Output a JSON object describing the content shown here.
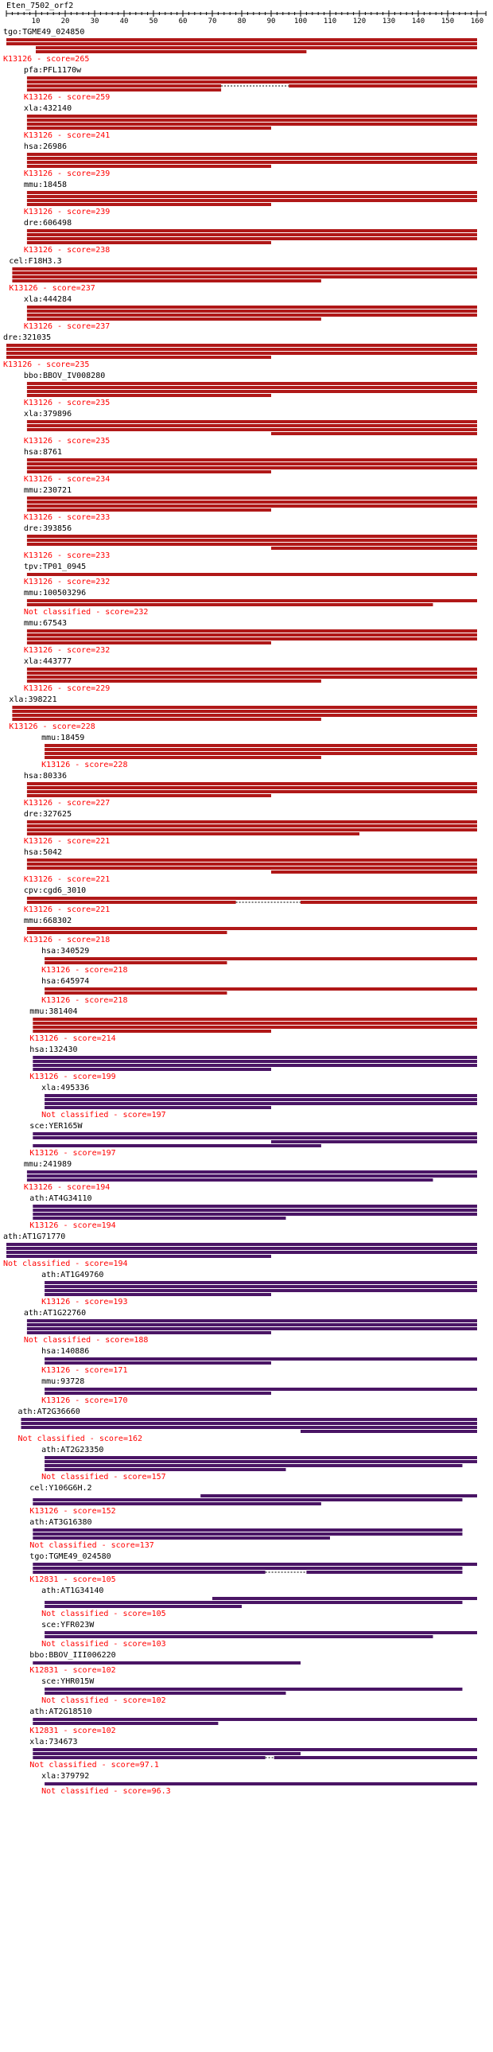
{
  "title": "Eten_7502_orf2",
  "axis": {
    "min": 0,
    "max": 163,
    "tick_values": [
      10,
      20,
      30,
      40,
      50,
      60,
      70,
      80,
      90,
      100,
      110,
      120,
      130,
      140,
      150,
      160
    ],
    "tick_labels": [
      "10",
      "20",
      "30",
      "40",
      "50",
      "60",
      "70",
      "80",
      "90",
      "100",
      "110",
      "120",
      "130",
      "140",
      "150",
      "160"
    ]
  },
  "colors": {
    "red_bar": "#b01818",
    "purple_bar": "#4a1565",
    "label_text": "#ff0000",
    "axis": "#000000"
  },
  "hits": [
    {
      "gene": "tgo:TGME49_024850",
      "label": "K13126 - score=265",
      "start": 0,
      "bar_color": "red",
      "bars": [
        [
          0,
          160
        ],
        [
          0,
          160
        ],
        [
          10,
          160
        ],
        [
          10,
          102
        ]
      ]
    },
    {
      "gene": "pfa:PFL1170w",
      "label": "K13126 - score=259",
      "start": 7,
      "bar_color": "red",
      "bars": [
        [
          7,
          160
        ],
        [
          7,
          160
        ],
        [
          7,
          73,
          96,
          160
        ],
        [
          7,
          73
        ]
      ]
    },
    {
      "gene": "xla:432140",
      "label": "K13126 - score=241",
      "start": 7,
      "bar_color": "red",
      "bars": [
        [
          7,
          160
        ],
        [
          7,
          160
        ],
        [
          7,
          160
        ],
        [
          7,
          90
        ]
      ]
    },
    {
      "gene": "hsa:26986",
      "label": "K13126 - score=239",
      "start": 7,
      "bar_color": "red",
      "bars": [
        [
          7,
          160
        ],
        [
          7,
          160
        ],
        [
          7,
          160
        ],
        [
          7,
          90
        ]
      ]
    },
    {
      "gene": "mmu:18458",
      "label": "K13126 - score=239",
      "start": 7,
      "bar_color": "red",
      "bars": [
        [
          7,
          160
        ],
        [
          7,
          160
        ],
        [
          7,
          160
        ],
        [
          7,
          90
        ]
      ]
    },
    {
      "gene": "dre:606498",
      "label": "K13126 - score=238",
      "start": 7,
      "bar_color": "red",
      "bars": [
        [
          7,
          160
        ],
        [
          7,
          160
        ],
        [
          7,
          160
        ],
        [
          7,
          90
        ]
      ]
    },
    {
      "gene": "cel:F18H3.3",
      "label": "K13126 - score=237",
      "start": 2,
      "bar_color": "red",
      "bars": [
        [
          2,
          160
        ],
        [
          2,
          160
        ],
        [
          2,
          160
        ],
        [
          2,
          107
        ]
      ]
    },
    {
      "gene": "xla:444284",
      "label": "K13126 - score=237",
      "start": 7,
      "bar_color": "red",
      "bars": [
        [
          7,
          160
        ],
        [
          7,
          160
        ],
        [
          7,
          160
        ],
        [
          7,
          107
        ]
      ]
    },
    {
      "gene": "dre:321035",
      "label": "K13126 - score=235",
      "start": 0,
      "bar_color": "red",
      "bars": [
        [
          0,
          160
        ],
        [
          0,
          160
        ],
        [
          0,
          160
        ],
        [
          0,
          90
        ]
      ]
    },
    {
      "gene": "bbo:BBOV_IV008280",
      "label": "K13126 - score=235",
      "start": 7,
      "bar_color": "red",
      "bars": [
        [
          7,
          160
        ],
        [
          7,
          160
        ],
        [
          7,
          160
        ],
        [
          7,
          90
        ]
      ]
    },
    {
      "gene": "xla:379896",
      "label": "K13126 - score=235",
      "start": 7,
      "bar_color": "red",
      "bars": [
        [
          7,
          160
        ],
        [
          7,
          160
        ],
        [
          7,
          160
        ],
        [
          90,
          160
        ]
      ]
    },
    {
      "gene": "hsa:8761",
      "label": "K13126 - score=234",
      "start": 7,
      "bar_color": "red",
      "bars": [
        [
          7,
          160
        ],
        [
          7,
          160
        ],
        [
          7,
          160
        ],
        [
          7,
          90
        ]
      ]
    },
    {
      "gene": "mmu:230721",
      "label": "K13126 - score=233",
      "start": 7,
      "bar_color": "red",
      "bars": [
        [
          7,
          160
        ],
        [
          7,
          160
        ],
        [
          7,
          160
        ],
        [
          7,
          90
        ]
      ]
    },
    {
      "gene": "dre:393856",
      "label": "K13126 - score=233",
      "start": 7,
      "bar_color": "red",
      "bars": [
        [
          7,
          160
        ],
        [
          7,
          160
        ],
        [
          7,
          160
        ],
        [
          90,
          160
        ]
      ]
    },
    {
      "gene": "tpv:TP01_0945",
      "label": "K13126 - score=232",
      "start": 7,
      "bar_color": "red",
      "bars": [
        [
          7,
          160
        ]
      ]
    },
    {
      "gene": "mmu:100503296",
      "label": "Not classified - score=232",
      "start": 7,
      "bar_color": "red",
      "bars": [
        [
          7,
          160
        ],
        [
          7,
          145
        ]
      ]
    },
    {
      "gene": "mmu:67543",
      "label": "K13126 - score=232",
      "start": 7,
      "bar_color": "red",
      "bars": [
        [
          7,
          160
        ],
        [
          7,
          160
        ],
        [
          7,
          160
        ],
        [
          7,
          90
        ]
      ]
    },
    {
      "gene": "xla:443777",
      "label": "K13126 - score=229",
      "start": 7,
      "bar_color": "red",
      "bars": [
        [
          7,
          160
        ],
        [
          7,
          160
        ],
        [
          7,
          160
        ],
        [
          7,
          107
        ]
      ]
    },
    {
      "gene": "xla:398221",
      "label": "K13126 - score=228",
      "start": 2,
      "bar_color": "red",
      "bars": [
        [
          2,
          160
        ],
        [
          2,
          160
        ],
        [
          2,
          160
        ],
        [
          2,
          107
        ]
      ]
    },
    {
      "gene": "mmu:18459",
      "label": "K13126 - score=228",
      "start": 13,
      "bar_color": "red",
      "bars": [
        [
          13,
          160
        ],
        [
          13,
          160
        ],
        [
          13,
          160
        ],
        [
          13,
          107
        ]
      ]
    },
    {
      "gene": "hsa:80336",
      "label": "K13126 - score=227",
      "start": 7,
      "bar_color": "red",
      "bars": [
        [
          7,
          160
        ],
        [
          7,
          160
        ],
        [
          7,
          160
        ],
        [
          7,
          90
        ]
      ]
    },
    {
      "gene": "dre:327625",
      "label": "K13126 - score=221",
      "start": 7,
      "bar_color": "red",
      "bars": [
        [
          7,
          160
        ],
        [
          7,
          160
        ],
        [
          7,
          160
        ],
        [
          7,
          120
        ]
      ]
    },
    {
      "gene": "hsa:5042",
      "label": "K13126 - score=221",
      "start": 7,
      "bar_color": "red",
      "bars": [
        [
          7,
          160
        ],
        [
          7,
          160
        ],
        [
          7,
          160
        ],
        [
          90,
          160
        ]
      ]
    },
    {
      "gene": "cpv:cgd6_3010",
      "label": "K13126 - score=221",
      "start": 7,
      "bar_color": "red",
      "bars": [
        [
          7,
          160
        ],
        [
          7,
          78,
          100,
          160
        ]
      ]
    },
    {
      "gene": "mmu:668302",
      "label": "K13126 - score=218",
      "start": 7,
      "bar_color": "red",
      "bars": [
        [
          7,
          160
        ],
        [
          7,
          75
        ]
      ]
    },
    {
      "gene": "hsa:340529",
      "label": "K13126 - score=218",
      "start": 13,
      "bar_color": "red",
      "bars": [
        [
          13,
          160
        ],
        [
          13,
          75
        ]
      ]
    },
    {
      "gene": "hsa:645974",
      "label": "K13126 - score=218",
      "start": 13,
      "bar_color": "red",
      "bars": [
        [
          13,
          160
        ],
        [
          13,
          75
        ]
      ]
    },
    {
      "gene": "mmu:381404",
      "label": "K13126 - score=214",
      "start": 9,
      "bar_color": "red",
      "bars": [
        [
          9,
          160
        ],
        [
          9,
          160
        ],
        [
          9,
          160
        ],
        [
          9,
          90
        ]
      ]
    },
    {
      "gene": "hsa:132430",
      "label": "K13126 - score=199",
      "start": 9,
      "bar_color": "purple",
      "bars": [
        [
          9,
          160
        ],
        [
          9,
          160
        ],
        [
          9,
          160
        ],
        [
          9,
          90
        ]
      ]
    },
    {
      "gene": "xla:495336",
      "label": "Not classified - score=197",
      "start": 13,
      "bar_color": "purple",
      "bars": [
        [
          13,
          160
        ],
        [
          13,
          160
        ],
        [
          13,
          160
        ],
        [
          13,
          90
        ]
      ]
    },
    {
      "gene": "sce:YER165W",
      "label": "K13126 - score=197",
      "start": 9,
      "bar_color": "purple",
      "bars": [
        [
          9,
          160
        ],
        [
          9,
          160
        ],
        [
          90,
          160
        ],
        [
          9,
          107
        ]
      ]
    },
    {
      "gene": "mmu:241989",
      "label": "K13126 - score=194",
      "start": 7,
      "bar_color": "purple",
      "bars": [
        [
          7,
          160
        ],
        [
          7,
          160
        ],
        [
          7,
          145
        ]
      ]
    },
    {
      "gene": "ath:AT4G34110",
      "label": "K13126 - score=194",
      "start": 9,
      "bar_color": "purple",
      "bars": [
        [
          9,
          160
        ],
        [
          9,
          160
        ],
        [
          9,
          160
        ],
        [
          9,
          95
        ]
      ]
    },
    {
      "gene": "ath:AT1G71770",
      "label": "Not classified - score=194",
      "start": 0,
      "bar_color": "purple",
      "bars": [
        [
          0,
          160
        ],
        [
          0,
          160
        ],
        [
          0,
          160
        ],
        [
          0,
          90
        ]
      ]
    },
    {
      "gene": "ath:AT1G49760",
      "label": "K13126 - score=193",
      "start": 13,
      "bar_color": "purple",
      "bars": [
        [
          13,
          160
        ],
        [
          13,
          160
        ],
        [
          13,
          160
        ],
        [
          13,
          90
        ]
      ]
    },
    {
      "gene": "ath:AT1G22760",
      "label": "Not classified - score=188",
      "start": 7,
      "bar_color": "purple",
      "bars": [
        [
          7,
          160
        ],
        [
          7,
          160
        ],
        [
          7,
          160
        ],
        [
          7,
          90
        ]
      ]
    },
    {
      "gene": "hsa:140886",
      "label": "K13126 - score=171",
      "start": 13,
      "bar_color": "purple",
      "bars": [
        [
          13,
          160
        ],
        [
          13,
          90
        ]
      ]
    },
    {
      "gene": "mmu:93728",
      "label": "K13126 - score=170",
      "start": 13,
      "bar_color": "purple",
      "bars": [
        [
          13,
          160
        ],
        [
          13,
          90
        ]
      ]
    },
    {
      "gene": "ath:AT2G36660",
      "label": "Not classified - score=162",
      "start": 5,
      "bar_color": "purple",
      "bars": [
        [
          5,
          160
        ],
        [
          5,
          160
        ],
        [
          5,
          160
        ],
        [
          100,
          160
        ]
      ]
    },
    {
      "gene": "ath:AT2G23350",
      "label": "Not classified - score=157",
      "start": 13,
      "bar_color": "purple",
      "bars": [
        [
          13,
          160
        ],
        [
          13,
          160
        ],
        [
          13,
          155
        ],
        [
          13,
          95
        ]
      ]
    },
    {
      "gene": "cel:Y106G6H.2",
      "label": "K13126 - score=152",
      "start": 9,
      "bar_color": "purple",
      "bars": [
        [
          66,
          160
        ],
        [
          9,
          155
        ],
        [
          9,
          107
        ]
      ]
    },
    {
      "gene": "ath:AT3G16380",
      "label": "Not classified - score=137",
      "start": 9,
      "bar_color": "purple",
      "bars": [
        [
          9,
          155
        ],
        [
          9,
          155
        ],
        [
          9,
          110
        ]
      ]
    },
    {
      "gene": "tgo:TGME49_024580",
      "label": "K12831 - score=105",
      "start": 9,
      "bar_color": "purple",
      "bars": [
        [
          9,
          160
        ],
        [
          9,
          155
        ],
        [
          9,
          88,
          102,
          155
        ]
      ]
    },
    {
      "gene": "ath:AT1G34140",
      "label": "Not classified - score=105",
      "start": 13,
      "bar_color": "purple",
      "bars": [
        [
          70,
          160
        ],
        [
          13,
          155
        ],
        [
          13,
          80
        ]
      ]
    },
    {
      "gene": "sce:YFR023W",
      "label": "Not classified - score=103",
      "start": 13,
      "bar_color": "purple",
      "bars": [
        [
          13,
          160
        ],
        [
          13,
          145
        ]
      ]
    },
    {
      "gene": "bbo:BBOV_III006220",
      "label": "K12831 - score=102",
      "start": 9,
      "bar_color": "purple",
      "bars": [
        [
          9,
          100
        ]
      ]
    },
    {
      "gene": "sce:YHR015W",
      "label": "Not classified - score=102",
      "start": 13,
      "bar_color": "purple",
      "bars": [
        [
          13,
          155
        ],
        [
          13,
          95
        ]
      ]
    },
    {
      "gene": "ath:AT2G18510",
      "label": "K12831 - score=102",
      "start": 9,
      "bar_color": "purple",
      "bars": [
        [
          9,
          160
        ],
        [
          9,
          72
        ]
      ]
    },
    {
      "gene": "xla:734673",
      "label": "Not classified - score=97.1",
      "start": 9,
      "bar_color": "purple",
      "bars": [
        [
          9,
          160
        ],
        [
          9,
          100
        ],
        [
          9,
          88,
          91,
          160
        ]
      ]
    },
    {
      "gene": "xla:379792",
      "label": "Not classified - score=96.3",
      "start": 13,
      "bar_color": "purple",
      "bars": [
        [
          13,
          160
        ]
      ]
    }
  ]
}
